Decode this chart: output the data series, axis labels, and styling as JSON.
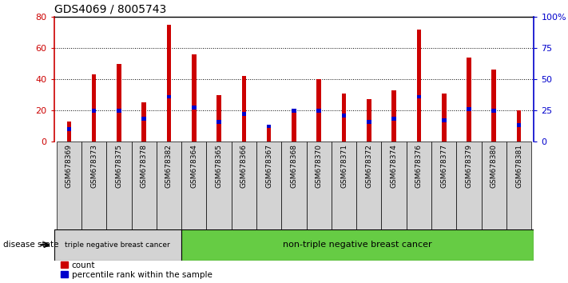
{
  "title": "GDS4069 / 8005743",
  "samples": [
    "GSM678369",
    "GSM678373",
    "GSM678375",
    "GSM678378",
    "GSM678382",
    "GSM678364",
    "GSM678365",
    "GSM678366",
    "GSM678367",
    "GSM678368",
    "GSM678370",
    "GSM678371",
    "GSM678372",
    "GSM678374",
    "GSM678376",
    "GSM678377",
    "GSM678379",
    "GSM678380",
    "GSM678381"
  ],
  "counts": [
    13,
    43,
    50,
    25,
    75,
    56,
    30,
    42,
    10,
    20,
    40,
    31,
    27,
    33,
    72,
    31,
    54,
    46,
    20
  ],
  "percentiles": [
    8,
    20,
    20,
    15,
    29,
    22,
    13,
    18,
    10,
    20,
    20,
    17,
    13,
    15,
    29,
    14,
    21,
    20,
    11
  ],
  "group1_count": 5,
  "group2_count": 14,
  "group1_label": "triple negative breast cancer",
  "group2_label": "non-triple negative breast cancer",
  "disease_state_label": "disease state",
  "bar_color": "#cc0000",
  "percentile_color": "#0000cc",
  "left_axis_color": "#cc0000",
  "right_axis_color": "#0000cc",
  "ylim_left": [
    0,
    80
  ],
  "ylim_right": [
    0,
    100
  ],
  "yticks_left": [
    0,
    20,
    40,
    60,
    80
  ],
  "yticks_right": [
    0,
    25,
    50,
    75,
    100
  ],
  "ytick_right_labels": [
    "0",
    "25",
    "50",
    "75",
    "100%"
  ],
  "background_color": "#ffffff",
  "plot_bg": "#ffffff",
  "ticklabel_bg": "#d3d3d3",
  "group1_bg": "#d3d3d3",
  "group2_bg": "#66cc44",
  "bar_width": 0.18
}
